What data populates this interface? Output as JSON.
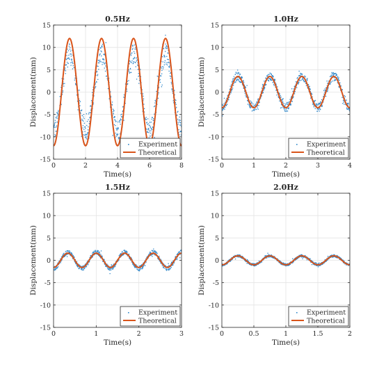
{
  "colors": {
    "experiment": "#2e86c8",
    "theoretical": "#d9541a",
    "grid": "#e4e4e4",
    "axis": "#262626"
  },
  "chart_data": [
    {
      "type": "scatter+line",
      "title": "0.5Hz",
      "xlabel": "Time(s)",
      "ylabel": "Displacement(mm)",
      "xlim": [
        0,
        8
      ],
      "ylim": [
        -15,
        15
      ],
      "xticks": [
        0,
        2,
        4,
        6,
        8
      ],
      "yticks": [
        -15,
        -10,
        -5,
        0,
        5,
        10,
        15
      ],
      "grid": true,
      "legend": "bottom-right",
      "series": [
        {
          "name": "Experiment",
          "style": "points",
          "frequency_hz": 0.5,
          "amplitude": 8.5,
          "phase_deg": 0
        },
        {
          "name": "Theoretical",
          "style": "line",
          "frequency_hz": 0.5,
          "amplitude": 12,
          "phase_deg": 0
        }
      ]
    },
    {
      "type": "scatter+line",
      "title": "1.0Hz",
      "xlabel": "Time(s)",
      "ylabel": "Displacement(mm)",
      "xlim": [
        0,
        4
      ],
      "ylim": [
        -15,
        15
      ],
      "xticks": [
        0,
        1,
        2,
        3,
        4
      ],
      "yticks": [
        -15,
        -10,
        -5,
        0,
        5,
        10,
        15
      ],
      "grid": true,
      "legend": "bottom-right",
      "series": [
        {
          "name": "Experiment",
          "style": "points",
          "frequency_hz": 1.0,
          "amplitude": 3.5,
          "phase_deg": 0
        },
        {
          "name": "Theoretical",
          "style": "line",
          "frequency_hz": 1.0,
          "amplitude": 3.5,
          "phase_deg": 0
        }
      ]
    },
    {
      "type": "scatter+line",
      "title": "1.5Hz",
      "xlabel": "Time(s)",
      "ylabel": "Displacement(mm)",
      "xlim": [
        0,
        3
      ],
      "ylim": [
        -15,
        15
      ],
      "xticks": [
        0,
        1,
        2,
        3
      ],
      "yticks": [
        -15,
        -10,
        -5,
        0,
        5,
        10,
        15
      ],
      "grid": true,
      "legend": "bottom-right",
      "series": [
        {
          "name": "Experiment",
          "style": "points",
          "frequency_hz": 1.5,
          "amplitude": 1.8,
          "phase_deg": 0
        },
        {
          "name": "Theoretical",
          "style": "line",
          "frequency_hz": 1.5,
          "amplitude": 1.6,
          "phase_deg": 0
        }
      ]
    },
    {
      "type": "scatter+line",
      "title": "2.0Hz",
      "xlabel": "Time(s)",
      "ylabel": "Displacement(mm)",
      "xlim": [
        0,
        2
      ],
      "ylim": [
        -15,
        15
      ],
      "xticks": [
        0,
        0.5,
        1,
        1.5,
        2
      ],
      "yticks": [
        -15,
        -10,
        -5,
        0,
        5,
        10,
        15
      ],
      "grid": true,
      "legend": "bottom-right",
      "series": [
        {
          "name": "Experiment",
          "style": "points",
          "frequency_hz": 2.0,
          "amplitude": 1.0,
          "phase_deg": 0
        },
        {
          "name": "Theoretical",
          "style": "line",
          "frequency_hz": 2.0,
          "amplitude": 1.0,
          "phase_deg": 0
        }
      ]
    }
  ]
}
